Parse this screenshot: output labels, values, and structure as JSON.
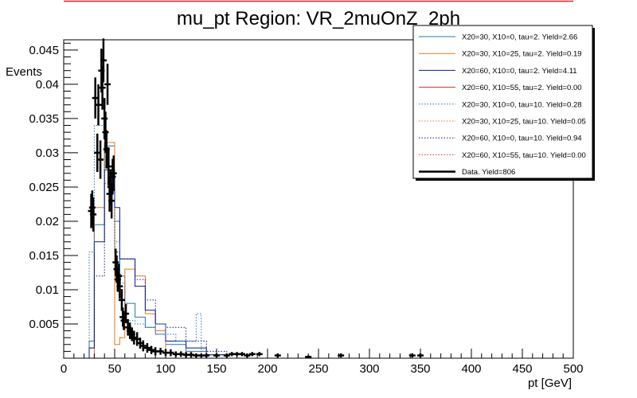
{
  "chart_data": {
    "type": "line",
    "title": "mu_pt Region: VR_2muOnZ_2ph",
    "xlabel": "pt [GeV]",
    "ylabel": "Events",
    "xlim": [
      0,
      500
    ],
    "ylim": [
      0,
      0.0465
    ],
    "x_ticks": [
      0,
      50,
      100,
      150,
      200,
      250,
      300,
      350,
      400,
      450,
      500
    ],
    "y_ticks": [
      0.005,
      0.01,
      0.015,
      0.02,
      0.025,
      0.03,
      0.035,
      0.04,
      0.045
    ],
    "grid": false,
    "legend_position": "top-right",
    "colors": {
      "s1": "#1f77b4",
      "s2": "#e8741e",
      "s3": "#0a1a8c",
      "s4": "#d62728",
      "s5": "#1f77b4",
      "s6": "#e8741e",
      "s7": "#0a1a8c",
      "s8": "#d62728",
      "data": "#000000",
      "topline": "#d62728"
    },
    "series": [
      {
        "name": "X20=30, X10=0, tau=2. Yield=2.66",
        "style": "solid",
        "edges": [
          25,
          30,
          40,
          50,
          55,
          60,
          70,
          80,
          90,
          100,
          120,
          140,
          160
        ],
        "values": [
          0.0025,
          0.0195,
          0.031,
          0.02,
          0.012,
          0.008,
          0.006,
          0.0045,
          0.0035,
          0.002,
          0.001,
          0.0005
        ]
      },
      {
        "name": "X20=30, X10=25, tau=2. Yield=0.19",
        "style": "solid",
        "edges": [
          25,
          30,
          40,
          50,
          55,
          60,
          70,
          80,
          90,
          100,
          120,
          140,
          160
        ],
        "values": [
          0.0,
          0.022,
          0.0315,
          0.002,
          0.003,
          0.013,
          0.012,
          0.0065,
          0.004,
          0.0,
          0.0,
          0.0
        ]
      },
      {
        "name": "X20=60, X10=0, tau=2. Yield=4.11",
        "style": "solid",
        "edges": [
          25,
          30,
          40,
          50,
          55,
          60,
          70,
          80,
          90,
          100,
          120,
          140,
          160
        ],
        "values": [
          0.0015,
          0.017,
          0.0275,
          0.022,
          0.0145,
          0.0145,
          0.0105,
          0.007,
          0.005,
          0.0025,
          0.0015,
          0.0005
        ]
      },
      {
        "name": "X20=60, X10=55, tau=2. Yield=0.00",
        "style": "solid",
        "edges": [
          25,
          30,
          40,
          50,
          55,
          60,
          70,
          80,
          90,
          100,
          120,
          140,
          160
        ],
        "values": [
          0,
          0,
          0,
          0,
          0,
          0,
          0,
          0,
          0,
          0,
          0,
          0
        ]
      },
      {
        "name": "X20=30, X10=0, tau=10. Yield=0.28",
        "style": "dotted",
        "edges": [
          25,
          30,
          40,
          50,
          55,
          60,
          70,
          80,
          90,
          100,
          110,
          130,
          135,
          145
        ],
        "values": [
          0.0155,
          0.034,
          0.0255,
          0.017,
          0.011,
          0.0055,
          0.005,
          0.0045,
          0.005,
          0.0035,
          0.0025,
          0.0065,
          0.0
        ]
      },
      {
        "name": "X20=30, X10=25, tau=10. Yield=0.05",
        "style": "dotted",
        "edges": [
          25,
          30,
          40,
          50,
          55,
          60,
          70,
          80,
          90,
          100,
          120,
          140,
          160
        ],
        "values": [
          0,
          0,
          0,
          0,
          0,
          0,
          0,
          0,
          0,
          0,
          0,
          0
        ]
      },
      {
        "name": "X20=60, X10=0, tau=10. Yield=0.94",
        "style": "dotted",
        "edges": [
          25,
          30,
          40,
          50,
          55,
          60,
          70,
          80,
          90,
          100,
          120,
          140,
          160
        ],
        "values": [
          0.0015,
          0.012,
          0.0275,
          0.0155,
          0.0145,
          0.0145,
          0.0115,
          0.0085,
          0.005,
          0.0045,
          0.0025,
          0.001
        ]
      },
      {
        "name": "X20=60, X10=55, tau=10. Yield=0.00",
        "style": "dotted",
        "edges": [
          25,
          30,
          40,
          50,
          55,
          60,
          70,
          80,
          90,
          100,
          120,
          140,
          160
        ],
        "values": [
          0,
          0,
          0,
          0,
          0,
          0,
          0,
          0,
          0,
          0,
          0,
          0
        ]
      }
    ],
    "data": {
      "name": "Data. Yield=806",
      "points": [
        {
          "x": 27,
          "y": 0.0215,
          "err": 0.0025
        },
        {
          "x": 28,
          "y": 0.022,
          "err": 0.0025
        },
        {
          "x": 29,
          "y": 0.021,
          "err": 0.0025
        },
        {
          "x": 31,
          "y": 0.038,
          "err": 0.003
        },
        {
          "x": 33,
          "y": 0.03,
          "err": 0.0028
        },
        {
          "x": 34,
          "y": 0.037,
          "err": 0.003
        },
        {
          "x": 36,
          "y": 0.029,
          "err": 0.0028
        },
        {
          "x": 37,
          "y": 0.042,
          "err": 0.0032
        },
        {
          "x": 38,
          "y": 0.0395,
          "err": 0.0032
        },
        {
          "x": 39,
          "y": 0.0435,
          "err": 0.0032
        },
        {
          "x": 40,
          "y": 0.035,
          "err": 0.003
        },
        {
          "x": 41,
          "y": 0.033,
          "err": 0.003
        },
        {
          "x": 42,
          "y": 0.0305,
          "err": 0.0028
        },
        {
          "x": 43,
          "y": 0.04,
          "err": 0.003
        },
        {
          "x": 44,
          "y": 0.028,
          "err": 0.0028
        },
        {
          "x": 45,
          "y": 0.024,
          "err": 0.0026
        },
        {
          "x": 46,
          "y": 0.025,
          "err": 0.0026
        },
        {
          "x": 47,
          "y": 0.023,
          "err": 0.0026
        },
        {
          "x": 48,
          "y": 0.0265,
          "err": 0.0026
        },
        {
          "x": 49,
          "y": 0.027,
          "err": 0.0026
        },
        {
          "x": 51,
          "y": 0.014,
          "err": 0.002
        },
        {
          "x": 52,
          "y": 0.013,
          "err": 0.002
        },
        {
          "x": 53,
          "y": 0.0115,
          "err": 0.0018
        },
        {
          "x": 54,
          "y": 0.012,
          "err": 0.0018
        },
        {
          "x": 55,
          "y": 0.0105,
          "err": 0.0018
        },
        {
          "x": 57,
          "y": 0.0085,
          "err": 0.0016
        },
        {
          "x": 58,
          "y": 0.006,
          "err": 0.0014
        },
        {
          "x": 59,
          "y": 0.0055,
          "err": 0.0014
        },
        {
          "x": 61,
          "y": 0.0065,
          "err": 0.0014
        },
        {
          "x": 63,
          "y": 0.0045,
          "err": 0.0012
        },
        {
          "x": 65,
          "y": 0.004,
          "err": 0.0012
        },
        {
          "x": 67,
          "y": 0.0035,
          "err": 0.001
        },
        {
          "x": 69,
          "y": 0.003,
          "err": 0.001
        },
        {
          "x": 72,
          "y": 0.0028,
          "err": 0.001
        },
        {
          "x": 75,
          "y": 0.0022,
          "err": 0.0008
        },
        {
          "x": 78,
          "y": 0.0018,
          "err": 0.0008
        },
        {
          "x": 82,
          "y": 0.0015,
          "err": 0.0007
        },
        {
          "x": 86,
          "y": 0.0012,
          "err": 0.0006
        },
        {
          "x": 90,
          "y": 0.001,
          "err": 0.0006
        },
        {
          "x": 95,
          "y": 0.001,
          "err": 0.0005
        },
        {
          "x": 100,
          "y": 0.0008,
          "err": 0.0005
        },
        {
          "x": 105,
          "y": 0.0008,
          "err": 0.0005
        },
        {
          "x": 110,
          "y": 0.0006,
          "err": 0.0004
        },
        {
          "x": 115,
          "y": 0.0006,
          "err": 0.0004
        },
        {
          "x": 120,
          "y": 0.0005,
          "err": 0.0004
        },
        {
          "x": 125,
          "y": 0.0005,
          "err": 0.0004
        },
        {
          "x": 130,
          "y": 0.0004,
          "err": 0.0003
        },
        {
          "x": 135,
          "y": 0.0004,
          "err": 0.0003
        },
        {
          "x": 140,
          "y": 0.0004,
          "err": 0.0003
        },
        {
          "x": 150,
          "y": 0.0004,
          "err": 0.0003
        },
        {
          "x": 160,
          "y": 0.0004,
          "err": 0.0003
        },
        {
          "x": 165,
          "y": 0.0006,
          "err": 0.0003
        },
        {
          "x": 170,
          "y": 0.0006,
          "err": 0.0003
        },
        {
          "x": 175,
          "y": 0.0006,
          "err": 0.0003
        },
        {
          "x": 180,
          "y": 0.0004,
          "err": 0.0003
        },
        {
          "x": 185,
          "y": 0.0006,
          "err": 0.0003
        },
        {
          "x": 192,
          "y": 0.0006,
          "err": 0.0003
        },
        {
          "x": 210,
          "y": 0.0004,
          "err": 0.0003
        },
        {
          "x": 240,
          "y": 0.0002,
          "err": 0.0002
        },
        {
          "x": 272,
          "y": 0.0004,
          "err": 0.0003
        },
        {
          "x": 342,
          "y": 0.0004,
          "err": 0.0003
        },
        {
          "x": 350,
          "y": 0.0004,
          "err": 0.0003
        }
      ]
    }
  },
  "y_tick_labels": [
    "0.005",
    "0.01",
    "0.015",
    "0.02",
    "0.025",
    "0.03",
    "0.035",
    "0.04",
    "0.045"
  ],
  "x_tick_labels": [
    "0",
    "50",
    "100",
    "150",
    "200",
    "250",
    "300",
    "350",
    "400",
    "450",
    "500"
  ]
}
